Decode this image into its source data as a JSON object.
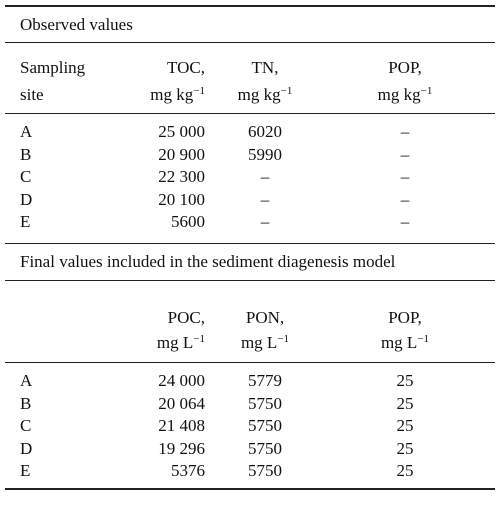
{
  "sections": [
    {
      "title": "Observed values",
      "row_header": {
        "line1": "Sampling",
        "line2": "site"
      },
      "columns": [
        {
          "name": "TOC,",
          "unit": "mg kg",
          "exponent": "−1"
        },
        {
          "name": "TN,",
          "unit": "mg kg",
          "exponent": "−1"
        },
        {
          "name": "POP,",
          "unit": "mg kg",
          "exponent": "−1"
        }
      ],
      "rows": [
        [
          "A",
          "25 000",
          "6020",
          "–"
        ],
        [
          "B",
          "20 900",
          "5990",
          "–"
        ],
        [
          "C",
          "22 300",
          "–",
          "–"
        ],
        [
          "D",
          "20 100",
          "–",
          "–"
        ],
        [
          "E",
          "5600",
          "–",
          "–"
        ]
      ]
    },
    {
      "title": "Final values included in the sediment diagenesis model",
      "columns": [
        {
          "name": "POC,",
          "unit": "mg L",
          "exponent": "−1"
        },
        {
          "name": "PON,",
          "unit": "mg L",
          "exponent": "−1"
        },
        {
          "name": "POP,",
          "unit": "mg L",
          "exponent": "−1"
        }
      ],
      "rows": [
        [
          "A",
          "24 000",
          "5779",
          "25"
        ],
        [
          "B",
          "20 064",
          "5750",
          "25"
        ],
        [
          "C",
          "21 408",
          "5750",
          "25"
        ],
        [
          "D",
          "19 296",
          "5750",
          "25"
        ],
        [
          "E",
          "5376",
          "5750",
          "25"
        ]
      ]
    }
  ]
}
